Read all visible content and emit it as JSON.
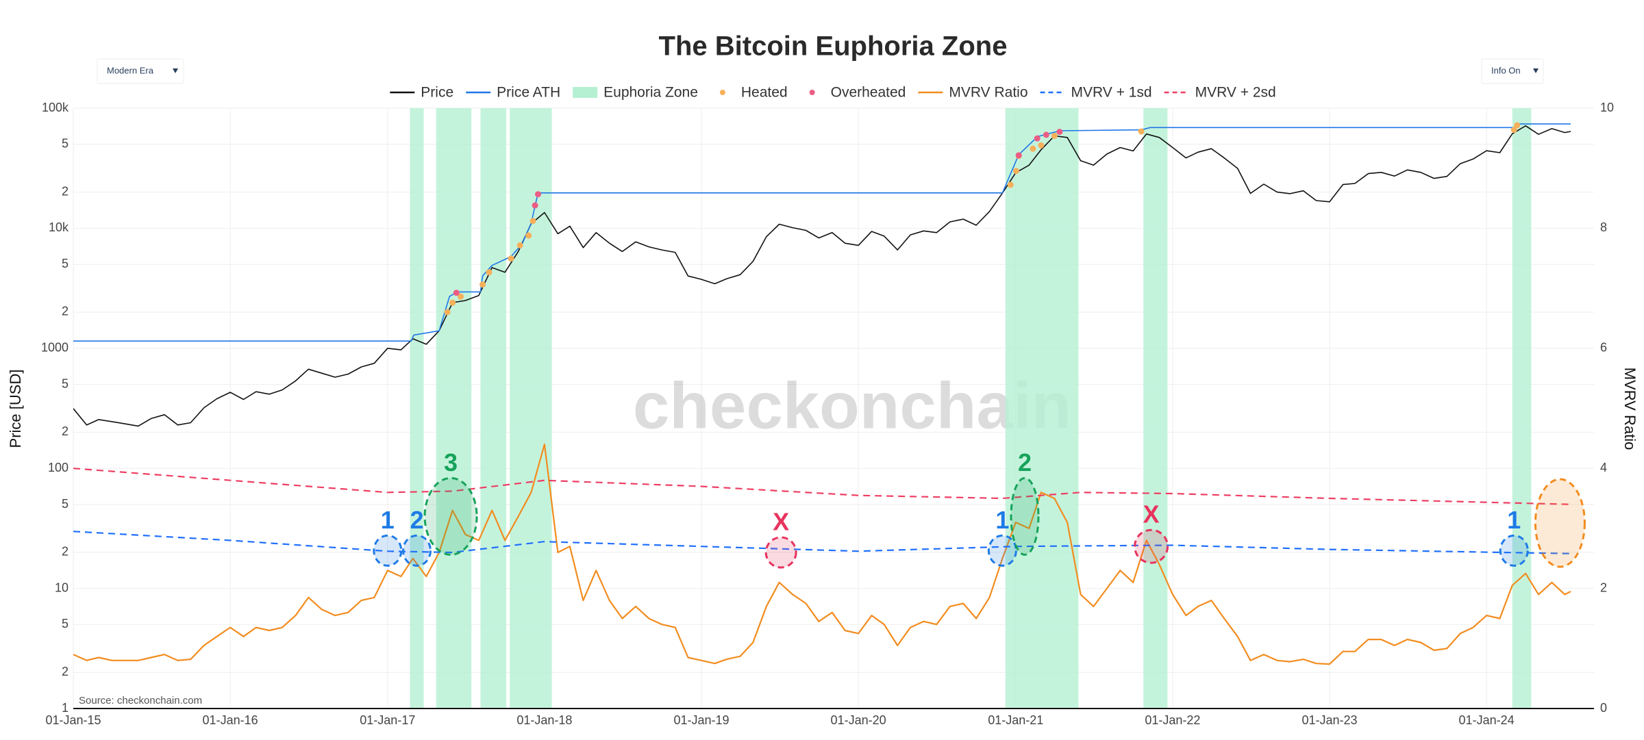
{
  "chart_data": {
    "type": "line",
    "title": "The Bitcoin Euphoria Zone",
    "y_label": "Price [USD]",
    "y2_label": "MVRV Ratio",
    "source": "Source: checkonchain.com",
    "watermark": "checkonchain",
    "controls": [
      "Modern Era",
      "Info On"
    ],
    "ylog": true,
    "grid": true,
    "xlim": [
      "2015-01-01",
      "2024-09-07"
    ],
    "xticks": [
      {
        "value": "2015-01-01",
        "label": "01-Jan-15"
      },
      {
        "value": "2016-01-01",
        "label": "01-Jan-16"
      },
      {
        "value": "2017-01-01",
        "label": "01-Jan-17"
      },
      {
        "value": "2018-01-01",
        "label": "01-Jan-18"
      },
      {
        "value": "2019-01-01",
        "label": "01-Jan-19"
      },
      {
        "value": "2020-01-01",
        "label": "01-Jan-20"
      },
      {
        "value": "2021-01-01",
        "label": "01-Jan-21"
      },
      {
        "value": "2022-01-01",
        "label": "01-Jan-22"
      },
      {
        "value": "2023-01-01",
        "label": "01-Jan-23"
      },
      {
        "value": "2024-01-01",
        "label": "01-Jan-24"
      }
    ],
    "ylim": [
      1,
      100000
    ],
    "yticks": [
      1,
      2,
      5,
      10,
      {
        "value": 20,
        "label": "2"
      },
      {
        "value": 50,
        "label": "5"
      },
      100,
      {
        "value": 200,
        "label": "2"
      },
      {
        "value": 500,
        "label": "5"
      },
      1000,
      {
        "value": 2000,
        "label": "2"
      },
      {
        "value": 5000,
        "label": "5"
      },
      {
        "value": 10000,
        "label": "10k"
      },
      {
        "value": 20000,
        "label": "2"
      },
      {
        "value": 50000,
        "label": "5"
      },
      {
        "value": 100000,
        "label": "100k"
      }
    ],
    "y2lim": [
      0,
      10
    ],
    "y2ticks": [
      0,
      2,
      4,
      6,
      8,
      10
    ],
    "x": [
      "2015-01-01",
      "2015-02-01",
      "2015-03-01",
      "2015-04-01",
      "2015-05-01",
      "2015-06-01",
      "2015-07-01",
      "2015-08-01",
      "2015-09-01",
      "2015-10-01",
      "2015-11-01",
      "2015-12-01",
      "2016-01-01",
      "2016-02-01",
      "2016-03-01",
      "2016-04-01",
      "2016-05-01",
      "2016-06-01",
      "2016-07-01",
      "2016-08-01",
      "2016-09-01",
      "2016-10-01",
      "2016-11-01",
      "2016-12-01",
      "2017-01-01",
      "2017-02-01",
      "2017-03-01",
      "2017-04-01",
      "2017-05-01",
      "2017-06-01",
      "2017-07-01",
      "2017-08-01",
      "2017-09-01",
      "2017-10-01",
      "2017-11-01",
      "2017-12-01",
      "2018-01-01",
      "2018-02-01",
      "2018-03-01",
      "2018-04-01",
      "2018-05-01",
      "2018-06-01",
      "2018-07-01",
      "2018-08-01",
      "2018-09-01",
      "2018-10-01",
      "2018-11-01",
      "2018-12-01",
      "2019-01-01",
      "2019-02-01",
      "2019-03-01",
      "2019-04-01",
      "2019-05-01",
      "2019-06-01",
      "2019-07-01",
      "2019-08-01",
      "2019-09-01",
      "2019-10-01",
      "2019-11-01",
      "2019-12-01",
      "2020-01-01",
      "2020-02-01",
      "2020-03-01",
      "2020-04-01",
      "2020-05-01",
      "2020-06-01",
      "2020-07-01",
      "2020-08-01",
      "2020-09-01",
      "2020-10-01",
      "2020-11-01",
      "2020-12-01",
      "2021-01-01",
      "2021-02-01",
      "2021-03-01",
      "2021-04-01",
      "2021-05-01",
      "2021-06-01",
      "2021-07-01",
      "2021-08-01",
      "2021-09-01",
      "2021-10-01",
      "2021-11-01",
      "2021-12-01",
      "2022-01-01",
      "2022-02-01",
      "2022-03-01",
      "2022-04-01",
      "2022-05-01",
      "2022-06-01",
      "2022-07-01",
      "2022-08-01",
      "2022-09-01",
      "2022-10-01",
      "2022-11-01",
      "2022-12-01",
      "2023-01-01",
      "2023-02-01",
      "2023-03-01",
      "2023-04-01",
      "2023-05-01",
      "2023-06-01",
      "2023-07-01",
      "2023-08-01",
      "2023-09-01",
      "2023-10-01",
      "2023-11-01",
      "2023-12-01",
      "2024-01-01",
      "2024-02-01",
      "2024-03-01",
      "2024-04-01",
      "2024-05-01",
      "2024-06-01",
      "2024-07-01",
      "2024-07-15"
    ],
    "series": [
      {
        "name": "Price",
        "color": "#111111",
        "mode": "lines",
        "values": [
          315,
          230,
          255,
          245,
          235,
          225,
          260,
          280,
          230,
          240,
          320,
          380,
          430,
          375,
          435,
          415,
          450,
          535,
          670,
          620,
          575,
          610,
          700,
          750,
          1000,
          970,
          1200,
          1080,
          1400,
          2400,
          2500,
          2750,
          4700,
          4300,
          6400,
          10900,
          13500,
          9000,
          10400,
          6900,
          9200,
          7500,
          6400,
          7700,
          7000,
          6600,
          6300,
          4000,
          3750,
          3450,
          3800,
          4100,
          5300,
          8500,
          10800,
          10100,
          9600,
          8300,
          9200,
          7500,
          7200,
          9400,
          8600,
          6600,
          8800,
          9500,
          9200,
          11300,
          11900,
          10600,
          13800,
          19600,
          29000,
          33500,
          45000,
          58800,
          57000,
          36500,
          33500,
          41500,
          47000,
          44000,
          61000,
          57000,
          47000,
          38500,
          43000,
          46000,
          38500,
          31500,
          19500,
          23300,
          20000,
          19400,
          20500,
          17000,
          16600,
          23100,
          23600,
          28500,
          29200,
          27200,
          30600,
          29200,
          26000,
          27000,
          34500,
          37700,
          44200,
          42600,
          61200,
          71300,
          60600,
          67500,
          62700,
          64000
        ]
      },
      {
        "name": "Price ATH",
        "color": "#1f77e8",
        "mode": "lines",
        "x": [
          "2015-01-01",
          "2017-02-25",
          "2017-03-03",
          "2017-05-01",
          "2017-05-25",
          "2017-06-12",
          "2017-08-05",
          "2017-08-10",
          "2017-09-01",
          "2017-10-15",
          "2017-11-10",
          "2017-12-01",
          "2017-12-17",
          "2020-12-01",
          "2021-01-08",
          "2021-02-21",
          "2021-04-14",
          "2021-10-20",
          "2021-11-10",
          "2024-03-05",
          "2024-03-14",
          "2024-07-15"
        ],
        "values": [
          1150,
          1150,
          1290,
          1400,
          2700,
          2950,
          2950,
          4000,
          4900,
          5800,
          7400,
          11000,
          19700,
          19700,
          41000,
          58000,
          64800,
          66000,
          69000,
          69000,
          73800,
          73800
        ]
      },
      {
        "name": "Euphoria Zone",
        "color": "#b5f0d3",
        "mode": "band",
        "ranges": [
          [
            "2017-02-22",
            "2017-03-26"
          ],
          [
            "2017-04-24",
            "2017-07-15"
          ],
          [
            "2017-08-05",
            "2017-10-04"
          ],
          [
            "2017-10-12",
            "2018-01-18"
          ],
          [
            "2020-12-08",
            "2021-05-27"
          ],
          [
            "2021-10-25",
            "2021-12-20"
          ],
          [
            "2024-03-01",
            "2024-04-14"
          ]
        ]
      },
      {
        "name": "Heated",
        "color": "#f6b05a",
        "mode": "markers",
        "x": [
          "2017-05-20",
          "2017-06-01",
          "2017-06-20",
          "2017-08-10",
          "2017-08-25",
          "2017-10-15",
          "2017-11-05",
          "2017-11-25",
          "2017-12-05",
          "2020-12-20",
          "2021-01-02",
          "2021-01-08",
          "2021-02-10",
          "2021-03-01",
          "2021-04-01",
          "2021-10-20",
          "2024-03-05",
          "2024-03-12"
        ],
        "values": [
          2000,
          2400,
          2700,
          3400,
          4300,
          5600,
          7200,
          8700,
          11500,
          23000,
          30000,
          40000,
          46000,
          49000,
          58800,
          64000,
          66000,
          72000
        ]
      },
      {
        "name": "Overheated",
        "color": "#ec5d84",
        "mode": "markers",
        "x": [
          "2017-06-10",
          "2017-12-10",
          "2017-12-17",
          "2021-01-08",
          "2021-02-20",
          "2021-03-13",
          "2021-04-13"
        ],
        "values": [
          2900,
          15500,
          19200,
          40500,
          56000,
          60000,
          63500
        ]
      },
      {
        "name": "MVRV Ratio",
        "color": "#f28c1e",
        "mode": "lines",
        "axis": "y2",
        "values": [
          0.9,
          0.8,
          0.85,
          0.8,
          0.8,
          0.8,
          0.85,
          0.9,
          0.8,
          0.82,
          1.05,
          1.2,
          1.35,
          1.2,
          1.35,
          1.3,
          1.35,
          1.55,
          1.85,
          1.65,
          1.55,
          1.6,
          1.8,
          1.85,
          2.3,
          2.2,
          2.5,
          2.2,
          2.6,
          3.3,
          2.9,
          2.8,
          3.3,
          2.8,
          3.2,
          3.6,
          4.4,
          2.6,
          2.7,
          1.8,
          2.3,
          1.8,
          1.5,
          1.7,
          1.5,
          1.4,
          1.35,
          0.85,
          0.8,
          0.75,
          0.82,
          0.87,
          1.1,
          1.7,
          2.1,
          1.9,
          1.75,
          1.45,
          1.6,
          1.3,
          1.25,
          1.55,
          1.4,
          1.05,
          1.35,
          1.45,
          1.4,
          1.7,
          1.75,
          1.5,
          1.85,
          2.5,
          3.1,
          3.0,
          3.6,
          3.5,
          3.1,
          1.9,
          1.7,
          2.0,
          2.3,
          2.1,
          2.8,
          2.4,
          1.9,
          1.55,
          1.7,
          1.8,
          1.5,
          1.2,
          0.8,
          0.9,
          0.8,
          0.78,
          0.82,
          0.75,
          0.74,
          0.95,
          0.95,
          1.15,
          1.15,
          1.05,
          1.15,
          1.1,
          0.97,
          1.0,
          1.25,
          1.35,
          1.55,
          1.5,
          2.05,
          2.25,
          1.9,
          2.1,
          1.9,
          1.95
        ]
      },
      {
        "name": "MVRV + 1sd",
        "color": "#1f6fff",
        "mode": "lines",
        "dash": true,
        "axis": "y2",
        "x": [
          "2015-01-01",
          "2016-01-01",
          "2017-01-01",
          "2017-06-01",
          "2018-01-01",
          "2019-01-01",
          "2020-01-01",
          "2021-01-01",
          "2022-01-01",
          "2023-01-01",
          "2024-07-15"
        ],
        "values": [
          2.95,
          2.8,
          2.62,
          2.6,
          2.78,
          2.7,
          2.62,
          2.7,
          2.72,
          2.65,
          2.58
        ]
      },
      {
        "name": "MVRV + 2sd",
        "color": "#ee3e62",
        "mode": "lines",
        "dash": true,
        "axis": "y2",
        "x": [
          "2015-01-01",
          "2016-01-01",
          "2017-01-01",
          "2017-06-01",
          "2018-01-01",
          "2019-01-01",
          "2020-01-01",
          "2020-12-01",
          "2021-06-01",
          "2022-01-01",
          "2023-01-01",
          "2024-07-15"
        ],
        "values": [
          4.0,
          3.8,
          3.6,
          3.62,
          3.8,
          3.7,
          3.55,
          3.5,
          3.6,
          3.58,
          3.5,
          3.4
        ]
      }
    ],
    "annotations": [
      {
        "text": "1",
        "x": "2017-01-01",
        "y": 2.63,
        "color": "#1e7be6"
      },
      {
        "text": "2",
        "x": "2017-03-10",
        "y": 2.63,
        "color": "#1e7be6"
      },
      {
        "text": "3",
        "x": "2017-05-28",
        "y": 3.2,
        "color": "#16a35a"
      },
      {
        "text": "X",
        "x": "2019-07-05",
        "y": 2.6,
        "color": "#e8335e"
      },
      {
        "text": "1",
        "x": "2020-12-01",
        "y": 2.63,
        "color": "#1e7be6"
      },
      {
        "text": "2",
        "x": "2021-01-22",
        "y": 3.2,
        "color": "#16a35a"
      },
      {
        "text": "X",
        "x": "2021-11-12",
        "y": 2.7,
        "color": "#e8335e"
      },
      {
        "text": "1",
        "x": "2024-03-05",
        "y": 2.63,
        "color": "#1e7be6"
      },
      {
        "x": "2024-06-20",
        "y": 3.09,
        "color": "#f28c1e"
      }
    ]
  }
}
